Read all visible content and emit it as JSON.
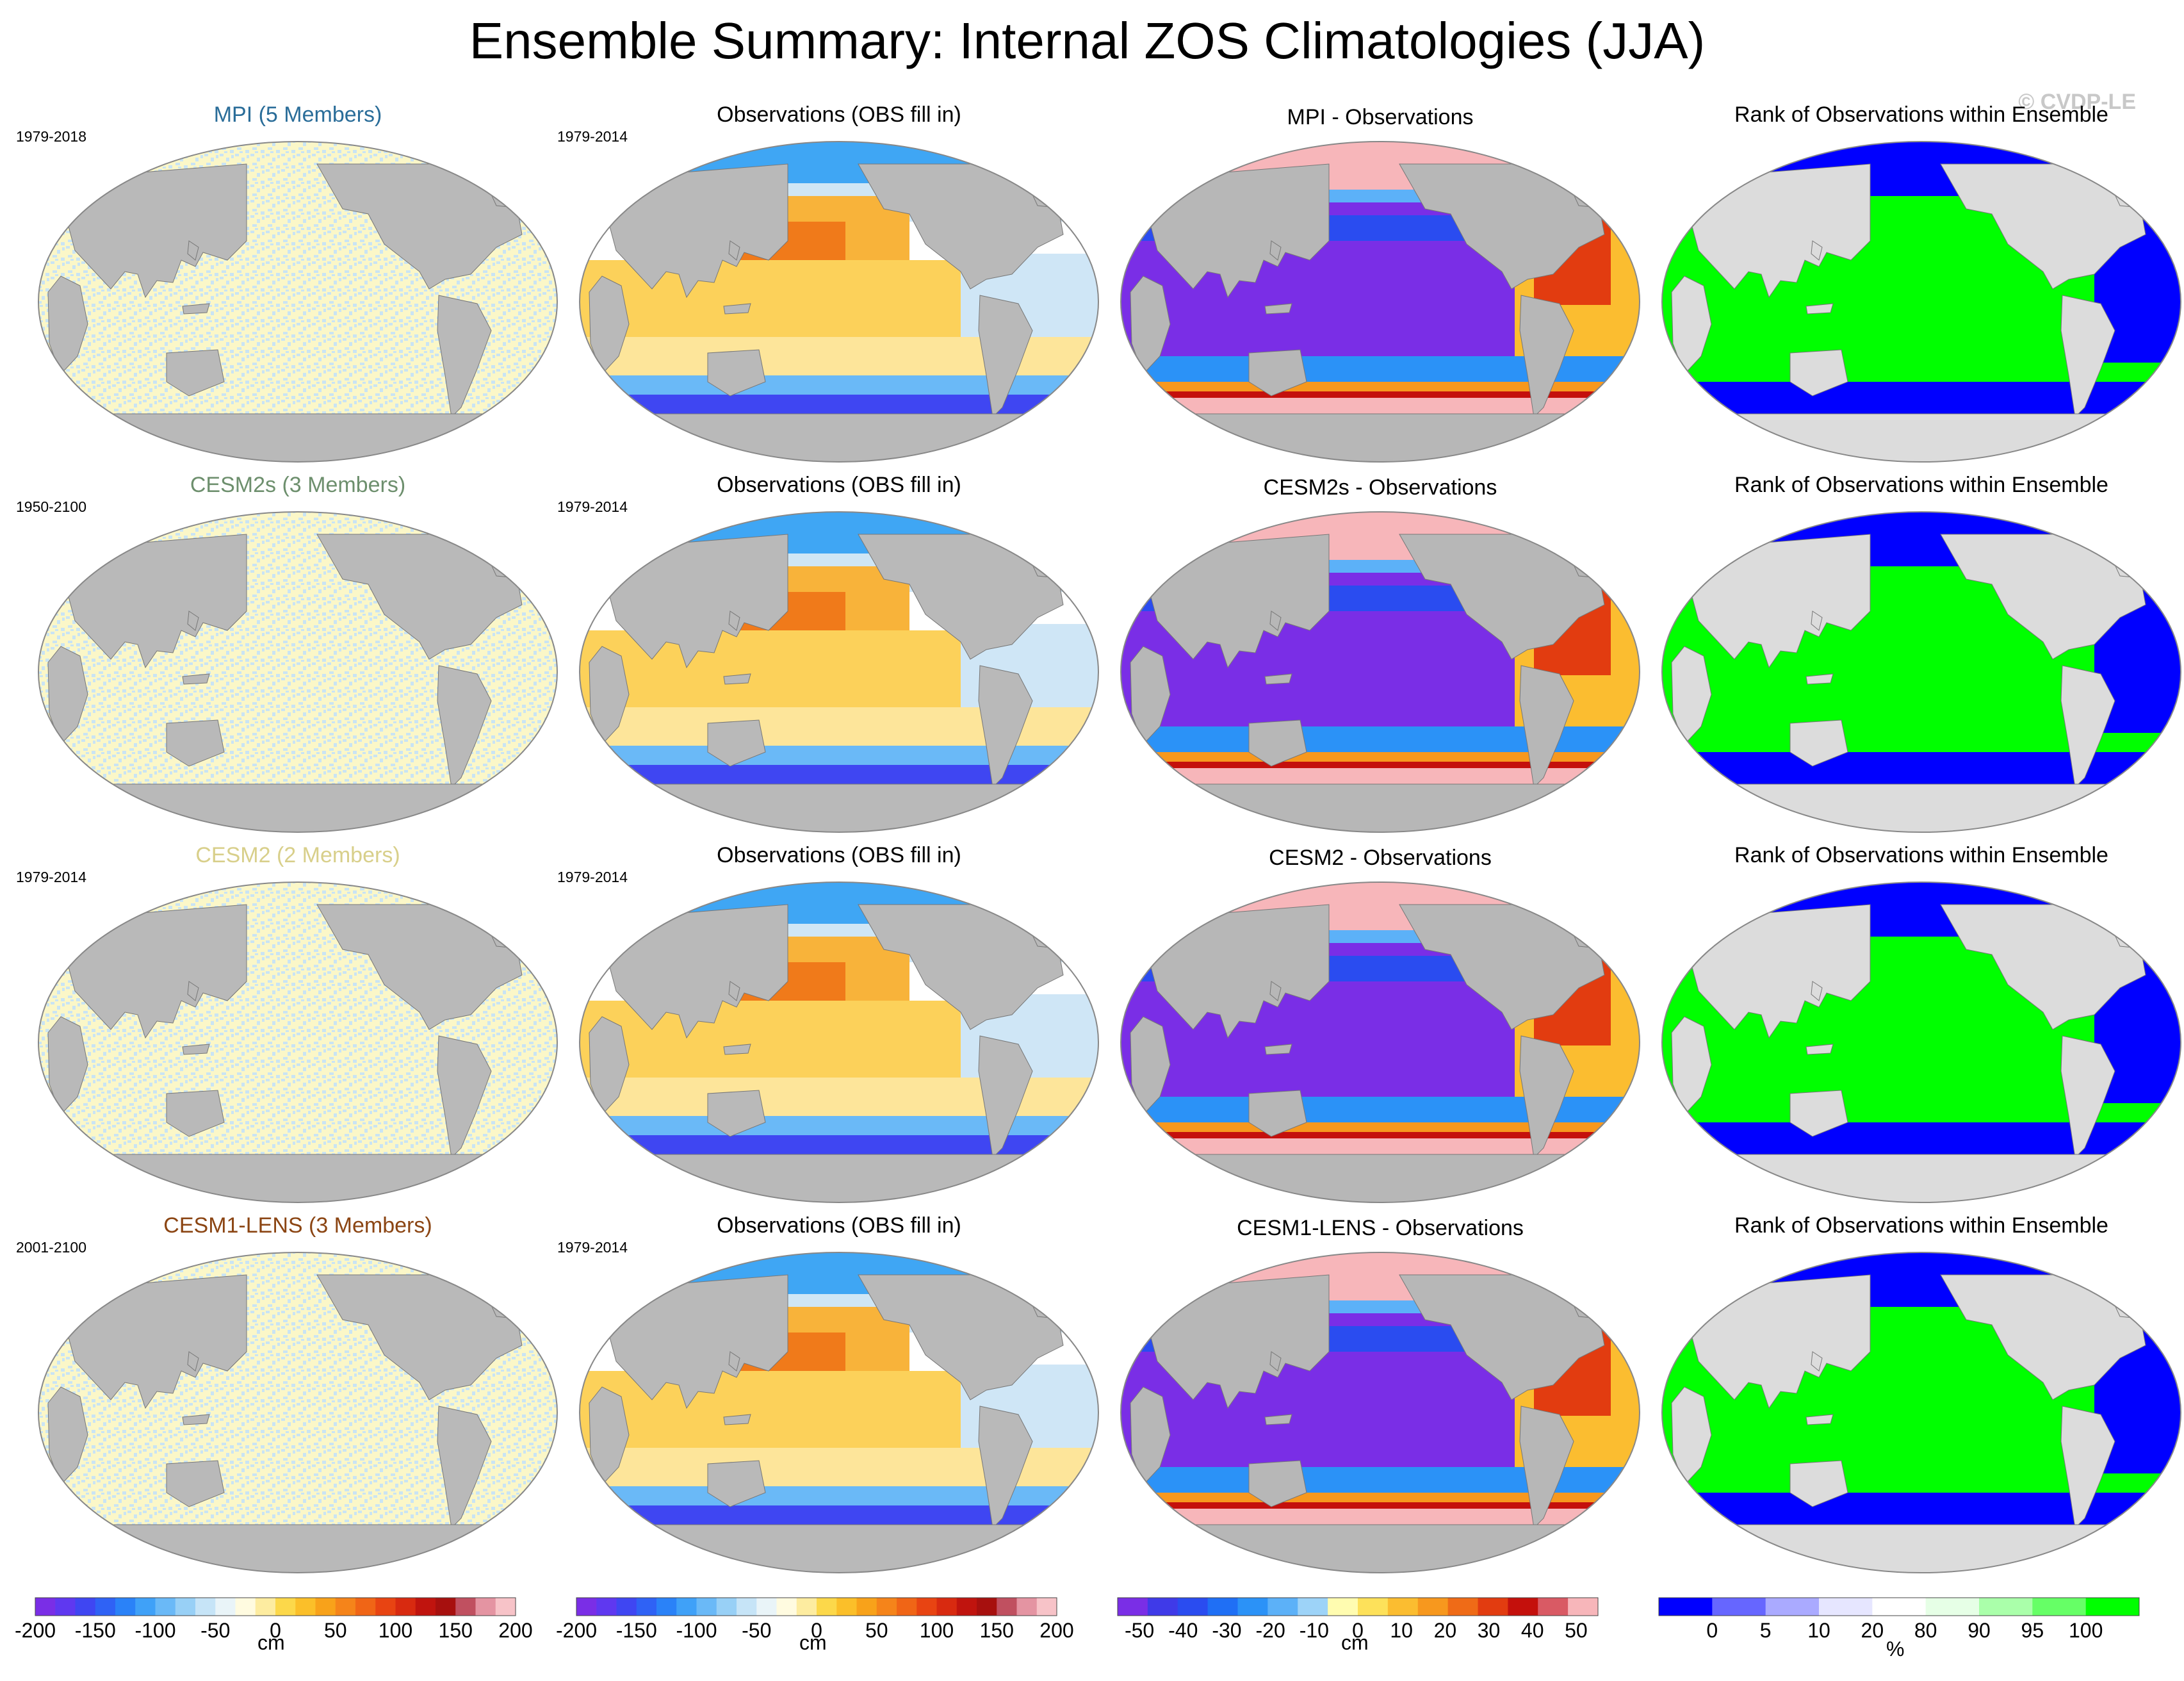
{
  "title": "Ensemble Summary: Internal ZOS Climatologies (JJA)",
  "watermark": "© CVDP-LE",
  "rows": [
    {
      "model_title": "MPI (5 Members)",
      "model_color": "#2a6d99",
      "model_years": "1979-2018",
      "obs_title": "Observations (OBS fill in)",
      "obs_years": "1979-2014",
      "diff_title": "MPI - Observations",
      "rank_title": "Rank of Observations within Ensemble"
    },
    {
      "model_title": "CESM2s (3 Members)",
      "model_color": "#6d8f6d",
      "model_years": "1950-2100",
      "obs_title": "Observations (OBS fill in)",
      "obs_years": "1979-2014",
      "diff_title": "CESM2s - Observations",
      "rank_title": "Rank of Observations within Ensemble"
    },
    {
      "model_title": "CESM2 (2 Members)",
      "model_color": "#d8cf8a",
      "model_years": "1979-2014",
      "obs_title": "Observations (OBS fill in)",
      "obs_years": "1979-2014",
      "diff_title": "CESM2 - Observations",
      "rank_title": "Rank of Observations within Ensemble"
    },
    {
      "model_title": "CESM1-LENS (3 Members)",
      "model_color": "#8b4513",
      "model_years": "2001-2100",
      "obs_title": "Observations (OBS fill in)",
      "obs_years": "1979-2014",
      "diff_title": "CESM1-LENS - Observations",
      "rank_title": "Rank of Observations within Ensemble"
    }
  ],
  "chart_data": {
    "type": "heatmap",
    "projection": "Robinson (Pacific-centered)",
    "colorbars": [
      {
        "unit": "cm",
        "ticks": [
          "-200",
          "-150",
          "-100",
          "-50",
          "0",
          "50",
          "100",
          "150",
          "200"
        ],
        "range": [
          -200,
          200
        ],
        "colors": [
          "#7a2ee6",
          "#5f38f0",
          "#3f46f2",
          "#2f62f5",
          "#2a82f8",
          "#3fa1f8",
          "#6ab9f7",
          "#98d0f6",
          "#c6e4f7",
          "#e9f4f8",
          "#fffbe0",
          "#fdeca0",
          "#fcd84a",
          "#fbbf29",
          "#f8a21a",
          "#f5841a",
          "#f06516",
          "#e84412",
          "#d82a10",
          "#c0140e",
          "#a7100e",
          "#c05060",
          "#e494a2",
          "#f7c3c8"
        ]
      },
      {
        "unit": "cm",
        "ticks": [
          "-200",
          "-150",
          "-100",
          "-50",
          "0",
          "50",
          "100",
          "150",
          "200"
        ],
        "range": [
          -200,
          200
        ],
        "colors": [
          "#7a2ee6",
          "#5f38f0",
          "#3f46f2",
          "#2f62f5",
          "#2a82f8",
          "#3fa1f8",
          "#6ab9f7",
          "#98d0f6",
          "#c6e4f7",
          "#e9f4f8",
          "#fffbe0",
          "#fdeca0",
          "#fcd84a",
          "#fbbf29",
          "#f8a21a",
          "#f5841a",
          "#f06516",
          "#e84412",
          "#d82a10",
          "#c0140e",
          "#a7100e",
          "#c05060",
          "#e494a2",
          "#f7c3c8"
        ]
      },
      {
        "unit": "cm",
        "ticks": [
          "-50",
          "-40",
          "-30",
          "-20",
          "-10",
          "0",
          "10",
          "20",
          "30",
          "40",
          "50"
        ],
        "range": [
          -55,
          55
        ],
        "colors": [
          "#7a2ee6",
          "#3f3ae8",
          "#2a4cf0",
          "#1f6ff5",
          "#2b92f7",
          "#5cb1f8",
          "#9dd3f8",
          "#fffcb0",
          "#fde15a",
          "#fbbd30",
          "#f7981e",
          "#ef6b17",
          "#e23c10",
          "#c4100c",
          "#d95a64",
          "#f7b6ba"
        ]
      },
      {
        "unit": "%",
        "ticks": [
          "0",
          "5",
          "10",
          "20",
          "80",
          "90",
          "95",
          "100"
        ],
        "colors": [
          "#0000ff",
          "#6666ff",
          "#aaaaff",
          "#e6e6ff",
          "#ffffff",
          "#e6ffe6",
          "#aaffaa",
          "#66ff66",
          "#00ff00"
        ]
      }
    ],
    "fields": {
      "model_ensemble_members": "fine-scale noise of cm-scale values around 0 (light blue / light yellow)",
      "observations": "-200 to 200 cm, positive (yellow-red) in Indo-Pacific, negative (blue-purple) in Southern Ocean and North Atlantic",
      "difference": "-50 to 50 cm, strongly negative Indo-Pacific, positive Atlantic, Southern Ocean edge ~+50",
      "rank": "100% (green) Indo-Pacific, 0% (blue) Southern Ocean and North Atlantic"
    }
  }
}
